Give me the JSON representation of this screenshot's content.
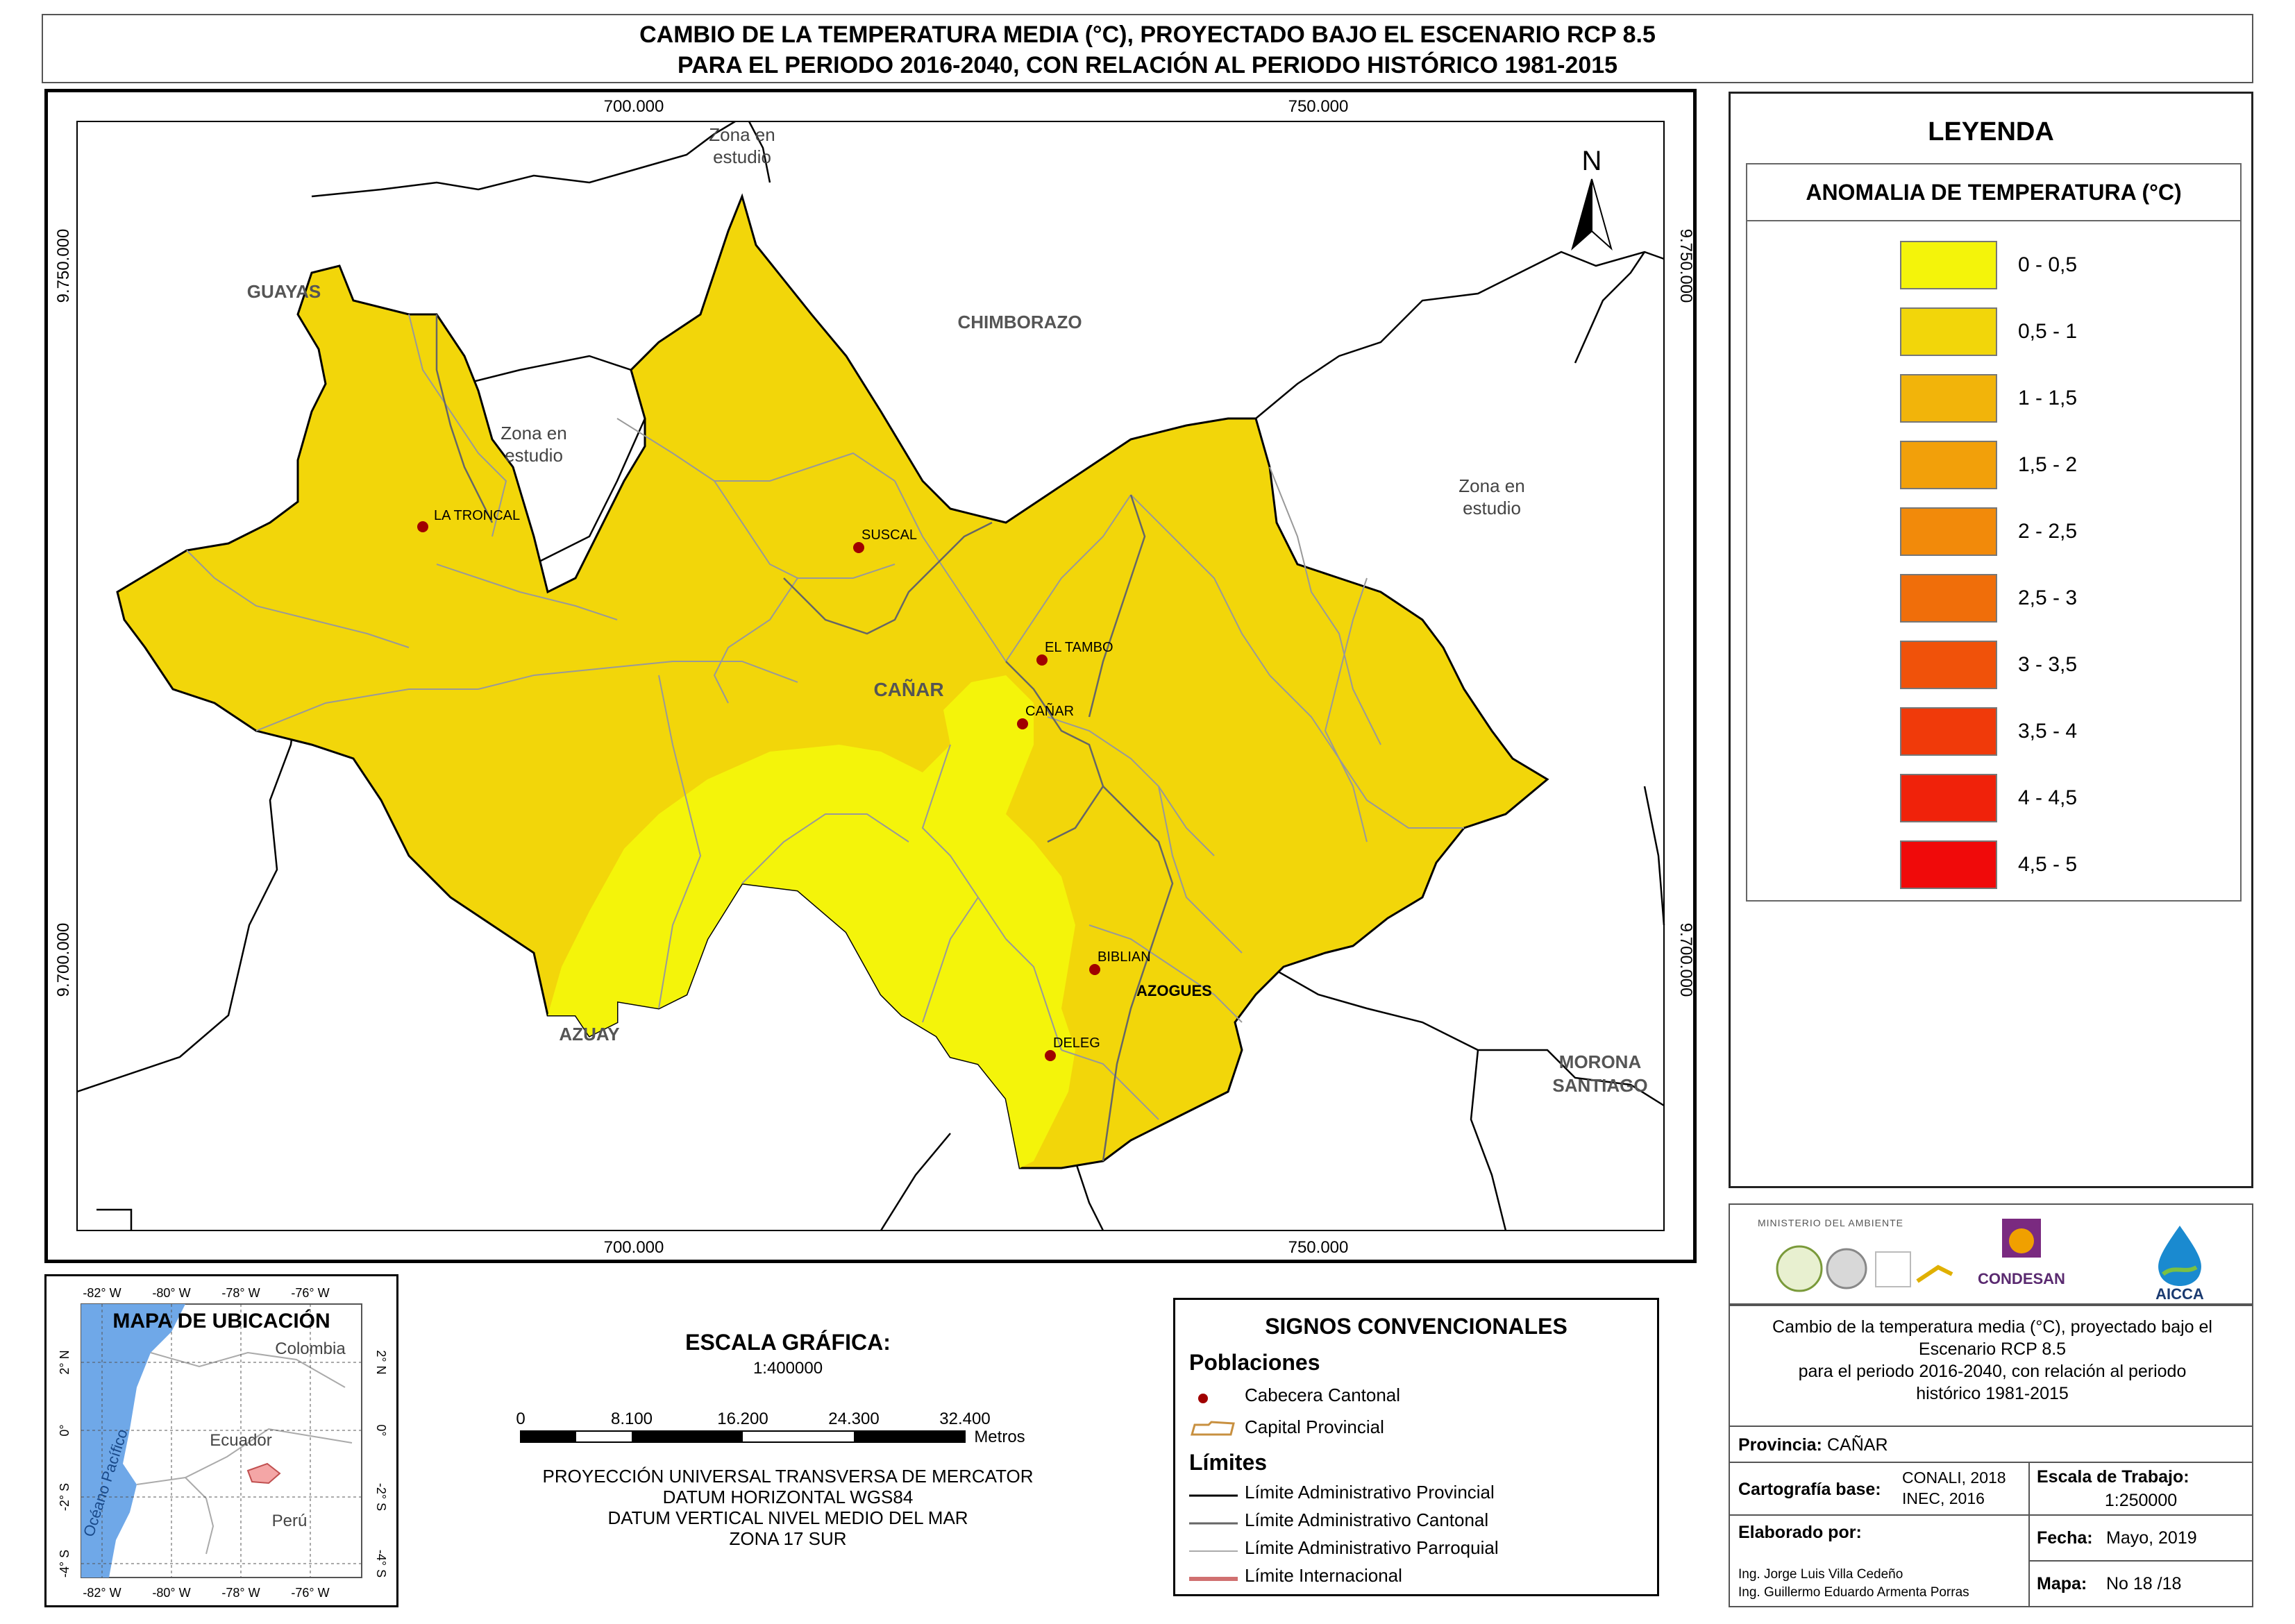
{
  "title": {
    "line1": "CAMBIO DE LA TEMPERATURA MEDIA (°C),  PROYECTADO BAJO EL ESCENARIO RCP 8.5",
    "line2": "PARA EL PERIODO 2016-2040, CON RELACIÓN AL PERIODO HISTÓRICO 1981-2015"
  },
  "map": {
    "coords": {
      "top_x1": "700.000",
      "top_x2": "750.000",
      "bottom_x1": "700.000",
      "bottom_x2": "750.000",
      "left_y1": "9.750.000",
      "left_y2": "9.700.000",
      "right_y1": "9.750.000",
      "right_y2": "9.700.000"
    },
    "north_label": "N",
    "regions": {
      "guayas": "GUAYAS",
      "chimborazo": "CHIMBORAZO",
      "azuay": "AZUAY",
      "morona_1": "MORONA",
      "morona_2": "SANTIAGO",
      "zona_top_1": "Zona en",
      "zona_top_2": "estudio",
      "zona_left_1": "Zona en",
      "zona_left_2": "estudio",
      "zona_right_1": "Zona en",
      "zona_right_2": "estudio",
      "province": "CAÑAR"
    },
    "towns": [
      {
        "name": "LA TRONCAL"
      },
      {
        "name": "SUSCAL"
      },
      {
        "name": "EL TAMBO"
      },
      {
        "name": "CAÑAR"
      },
      {
        "name": "BIBLIAN"
      },
      {
        "name": "DELEG"
      }
    ],
    "capital": "AZOGUES",
    "colors": {
      "zone_low": "#f4f40a",
      "zone_mid": "#f2d60a",
      "outline_province": "#000000",
      "outline_parish": "#999999",
      "town_dot": "#a00000"
    }
  },
  "legend": {
    "title": "LEYENDA",
    "subtitle": "ANOMALIA DE TEMPERATURA (°C)",
    "items": [
      {
        "label": "0 - 0,5",
        "color": "#f4f40a"
      },
      {
        "label": "0,5 - 1",
        "color": "#f2d60a"
      },
      {
        "label": "1 - 1,5",
        "color": "#f2b40a"
      },
      {
        "label": "1,5 - 2",
        "color": "#f2a00a"
      },
      {
        "label": "2 - 2,5",
        "color": "#f28a0a"
      },
      {
        "label": "2,5 - 3",
        "color": "#f06e0a"
      },
      {
        "label": "3 - 3,5",
        "color": "#f0520a"
      },
      {
        "label": "3,5 - 4",
        "color": "#f03a0a"
      },
      {
        "label": "4 - 4,5",
        "color": "#f0220a"
      },
      {
        "label": "4,5 - 5",
        "color": "#f00a0a"
      }
    ]
  },
  "logos": {
    "ministerio": "MINISTERIO DEL AMBIENTE",
    "condesan": "CONDESAN",
    "aicca": "AICCA"
  },
  "info": {
    "description_1": "Cambio de la temperatura media (°C),  proyectado bajo el",
    "description_2": "Escenario RCP 8.5",
    "description_3": "para el periodo 2016-2040, con relación al periodo",
    "description_4": "histórico 1981-2015",
    "provincia_label": "Provincia:",
    "provincia_value": "CAÑAR",
    "cartografia_label": "Cartografía base:",
    "cartografia_value_1": "CONALI, 2018",
    "cartografia_value_2": "INEC, 2016",
    "escala_label": "Escala de Trabajo:",
    "escala_value": "1:250000",
    "elaborado_label": "Elaborado por:",
    "elaborado_1": "Ing. Jorge Luis Villa Cedeño",
    "elaborado_2": "Ing. Guillermo Eduardo Armenta Porras",
    "fecha_label": "Fecha:",
    "fecha_value": "Mayo, 2019",
    "mapa_label": "Mapa:",
    "mapa_value": "No 18 /18"
  },
  "inset": {
    "title": "MAPA DE UBICACIÓN",
    "top_ticks": [
      "-82° W",
      "-80° W",
      "-78° W",
      "-76° W"
    ],
    "bottom_ticks": [
      "-82° W",
      "-80° W",
      "-78° W",
      "-76° W"
    ],
    "left_ticks": [
      "2° N",
      "0°",
      "-2° S",
      "-4° S"
    ],
    "right_ticks": [
      "2° N",
      "0°",
      "-2° S",
      "-4° S"
    ],
    "colombia": "Colombia",
    "ecuador": "Ecuador",
    "peru": "Perú",
    "ocean": "Océano Pacífico",
    "colors": {
      "ocean": "#6fa8e8",
      "highlight": "#f4a6a6"
    }
  },
  "scale": {
    "title": "ESCALA GRÁFICA:",
    "ratio": "1:400000",
    "ticks": [
      "0",
      "8.100",
      "16.200",
      "24.300",
      "32.400"
    ],
    "unit": "Metros",
    "proj_1": "PROYECCIÓN UNIVERSAL TRANSVERSA DE MERCATOR",
    "proj_2": "DATUM HORIZONTAL WGS84",
    "proj_3": "DATUM VERTICAL NIVEL MEDIO DEL MAR",
    "proj_4": "ZONA 17 SUR"
  },
  "signos": {
    "title": "SIGNOS CONVENCIONALES",
    "poblaciones": "Poblaciones",
    "cabecera": "Cabecera Cantonal",
    "capital": "Capital Provincial",
    "limites": "Límites",
    "lim_prov": "Límite Administrativo Provincial",
    "lim_cant": "Límite Administrativo Cantonal",
    "lim_parr": "Límite Administrativo Parroquial",
    "lim_int": "Límite Internacional"
  }
}
